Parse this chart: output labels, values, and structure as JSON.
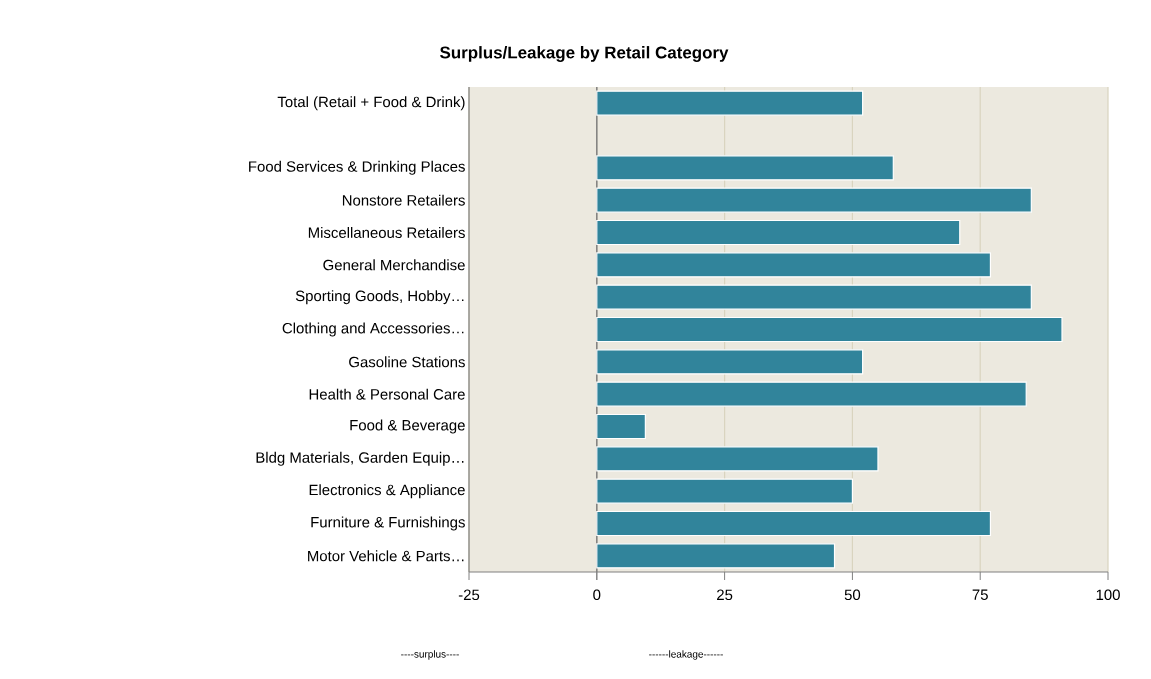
{
  "chart_data": {
    "type": "bar",
    "orientation": "horizontal",
    "title": "Surplus/Leakage by Retail Category",
    "categories": [
      "Total (Retail + Food & Drink)",
      null,
      "Food Services & Drinking Places",
      "Nonstore Retailers",
      "Miscellaneous Retailers",
      "General Merchandise",
      "Sporting Goods, Hobby…",
      "Clothing and Accessories…",
      "Gasoline Stations",
      "Health & Personal Care",
      "Food & Beverage",
      "Bldg Materials, Garden Equip…",
      "Electronics & Appliance",
      "Furniture &  Furnishings",
      "Motor Vehicle & Parts…"
    ],
    "values": [
      52,
      null,
      58,
      85,
      71,
      77,
      85,
      91,
      52,
      84,
      9.5,
      55,
      50,
      77,
      46.5
    ],
    "color": "#31849b",
    "xlim": [
      -25,
      100
    ],
    "xticks": [
      -25,
      0,
      25,
      50,
      75,
      100
    ],
    "grid": "x",
    "annotations": [
      "----surplus----",
      "------leakage------"
    ]
  }
}
